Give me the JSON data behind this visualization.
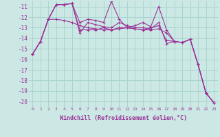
{
  "xlabel": "Windchill (Refroidissement éolien,°C)",
  "background_color": "#cce8e4",
  "grid_color": "#aad4d0",
  "line_color": "#993399",
  "x": [
    0,
    1,
    2,
    3,
    4,
    5,
    6,
    7,
    8,
    9,
    10,
    11,
    12,
    13,
    14,
    15,
    16,
    17,
    18,
    19,
    20,
    21,
    22,
    23
  ],
  "series": [
    [
      -15.5,
      -14.3,
      -12.2,
      -12.2,
      -12.3,
      -12.5,
      -12.8,
      -13.0,
      -13.1,
      -13.2,
      -13.2,
      -13.1,
      -13.0,
      -13.1,
      -13.2,
      -13.2,
      -13.1,
      -13.5,
      -14.3,
      -14.4,
      -14.1,
      -16.5,
      -19.2,
      -20.1
    ],
    [
      -15.5,
      -14.3,
      -12.2,
      -10.8,
      -10.8,
      -10.7,
      -12.5,
      -12.2,
      -12.3,
      -12.5,
      -10.5,
      -12.2,
      -13.0,
      -12.8,
      -12.5,
      -12.9,
      -11.0,
      -13.2,
      -14.3,
      -14.4,
      -14.1,
      -16.5,
      -19.2,
      -20.1
    ],
    [
      -15.5,
      -14.3,
      -12.2,
      -10.8,
      -10.8,
      -10.7,
      -13.5,
      -12.5,
      -12.7,
      -12.9,
      -13.0,
      -12.5,
      -12.8,
      -13.0,
      -13.0,
      -13.1,
      -12.5,
      -14.5,
      -14.3,
      -14.4,
      -14.1,
      -16.5,
      -19.2,
      -20.1
    ],
    [
      -15.5,
      -14.3,
      -12.2,
      -10.8,
      -10.8,
      -10.7,
      -13.2,
      -13.2,
      -13.2,
      -13.0,
      -13.2,
      -13.0,
      -13.0,
      -13.1,
      -13.2,
      -13.0,
      -12.8,
      -14.2,
      -14.3,
      -14.4,
      -14.1,
      -16.5,
      -19.2,
      -20.1
    ]
  ],
  "ylim": [
    -20.5,
    -10.5
  ],
  "yticks": [
    -11,
    -12,
    -13,
    -14,
    -15,
    -16,
    -17,
    -18,
    -19,
    -20
  ],
  "xlim": [
    -0.5,
    23.5
  ]
}
